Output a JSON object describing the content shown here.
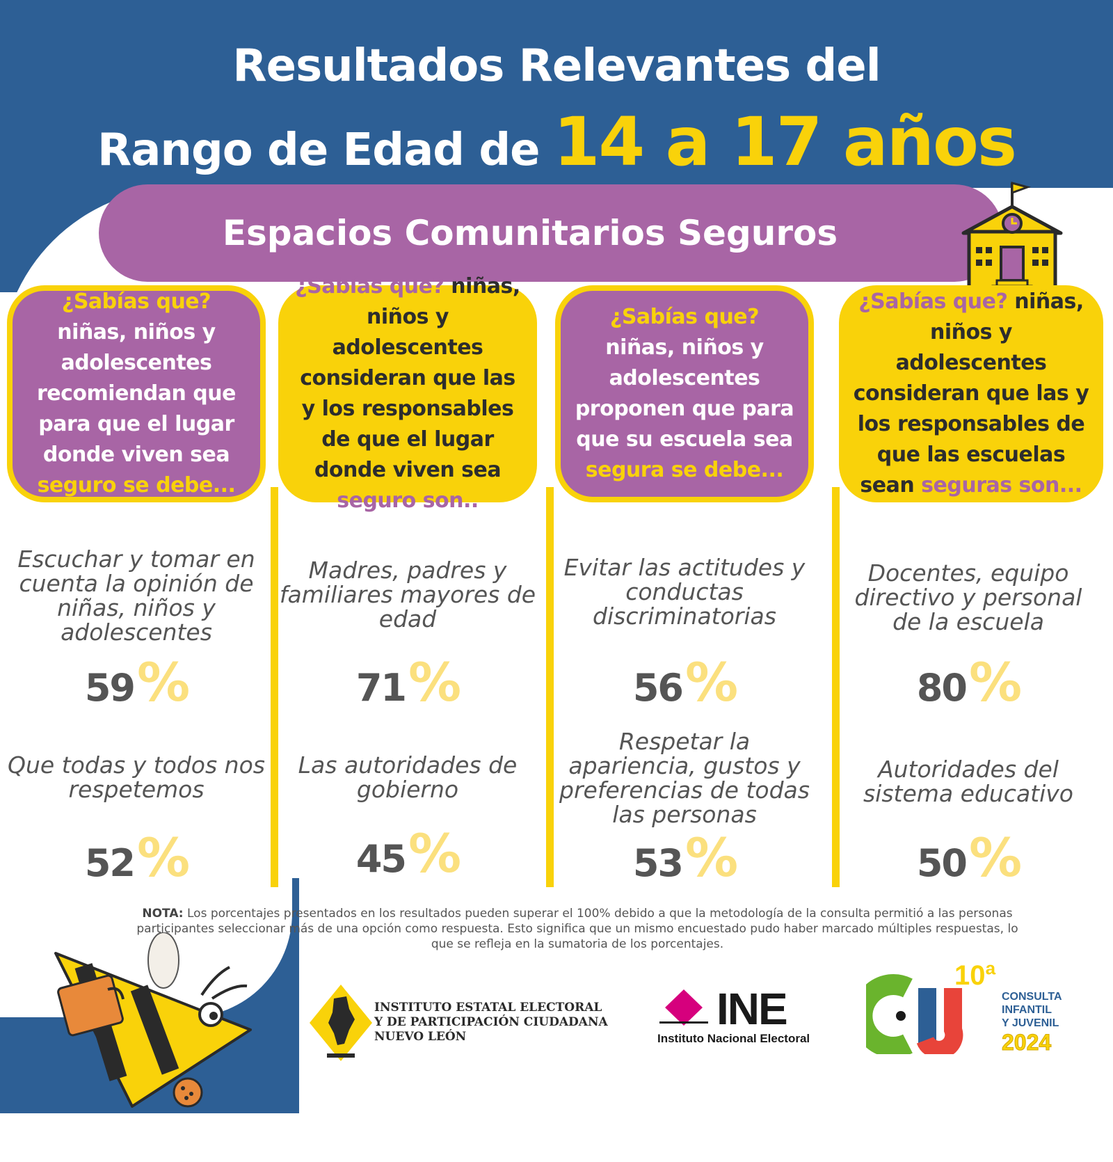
{
  "title": {
    "line1": "Resultados Relevantes del",
    "line2_prefix": "Rango de Edad de",
    "line2_highlight": "14 a 17 años"
  },
  "banner": {
    "label": "Espacios Comunitarios Seguros"
  },
  "colors": {
    "blue": "#2d5f95",
    "purple": "#a865a5",
    "yellow": "#f9d20a",
    "light_yellow": "#fbe07e",
    "gray_text": "#555555"
  },
  "columns": [
    {
      "card_style": "purple",
      "card": {
        "q": "¿Sabías que?",
        "body": " niñas, niños y adolescentes recomiendan que para que el lugar donde viven sea ",
        "tail": "seguro se debe..."
      },
      "results": [
        {
          "label": "Escuchar y tomar en cuenta la opinión de niñas, niños y adolescentes",
          "value": "59",
          "unit": "%"
        },
        {
          "label": "Que todas y todos nos respetemos",
          "value": "52",
          "unit": "%"
        }
      ]
    },
    {
      "card_style": "yellow",
      "card": {
        "q": "¿Sabías que?",
        "body": " niñas, niños y adolescentes consideran que las y los responsables de que el lugar donde viven sea ",
        "tail": "seguro son.."
      },
      "results": [
        {
          "label": "Madres, padres y familiares mayores de edad",
          "value": "71",
          "unit": "%"
        },
        {
          "label": "Las autoridades de gobierno",
          "value": "45",
          "unit": "%"
        }
      ]
    },
    {
      "card_style": "purple",
      "card": {
        "q": "¿Sabías que?",
        "body": " niñas, niños y adolescentes proponen que para que su escuela sea ",
        "tail": "segura se debe..."
      },
      "results": [
        {
          "label": "Evitar las actitudes y conductas discriminatorias",
          "value": "56",
          "unit": "%"
        },
        {
          "label": "Respetar la apariencia, gustos y preferencias de todas las personas",
          "value": "53",
          "unit": "%"
        }
      ]
    },
    {
      "card_style": "yellow",
      "card": {
        "q": "¿Sabías que?",
        "body": " niñas, niños y adolescentes consideran que las y los responsables de que las escuelas sean ",
        "tail": "seguras son..."
      },
      "results": [
        {
          "label": "Docentes, equipo directivo y personal de la escuela",
          "value": "80",
          "unit": "%"
        },
        {
          "label": "Autoridades del sistema educativo",
          "value": "50",
          "unit": "%"
        }
      ]
    }
  ],
  "note": {
    "label": "NOTA:",
    "text": " Los porcentajes presentados en los resultados pueden superar el 100% debido a que la metodología de la consulta permitió a las personas participantes seleccionar más de una opción como respuesta. Esto significa que un mismo encuestado pudo haber marcado múltiples respuestas, lo que se refleja en la sumatoria de los porcentajes."
  },
  "logos": {
    "iee": {
      "line1": "INSTITUTO ESTATAL ELECTORAL",
      "line2": "Y DE PARTICIPACIÓN CIUDADANA",
      "line3": "NUEVO LEÓN"
    },
    "ine": {
      "acronym": "INE",
      "name": "Instituto Nacional Electoral"
    },
    "cij": {
      "ordinal": "10ª",
      "letters": "CIJ",
      "line1": "CONSULTA",
      "line2": "INFANTIL",
      "line3": "Y JUVENIL",
      "year": "2024"
    }
  }
}
